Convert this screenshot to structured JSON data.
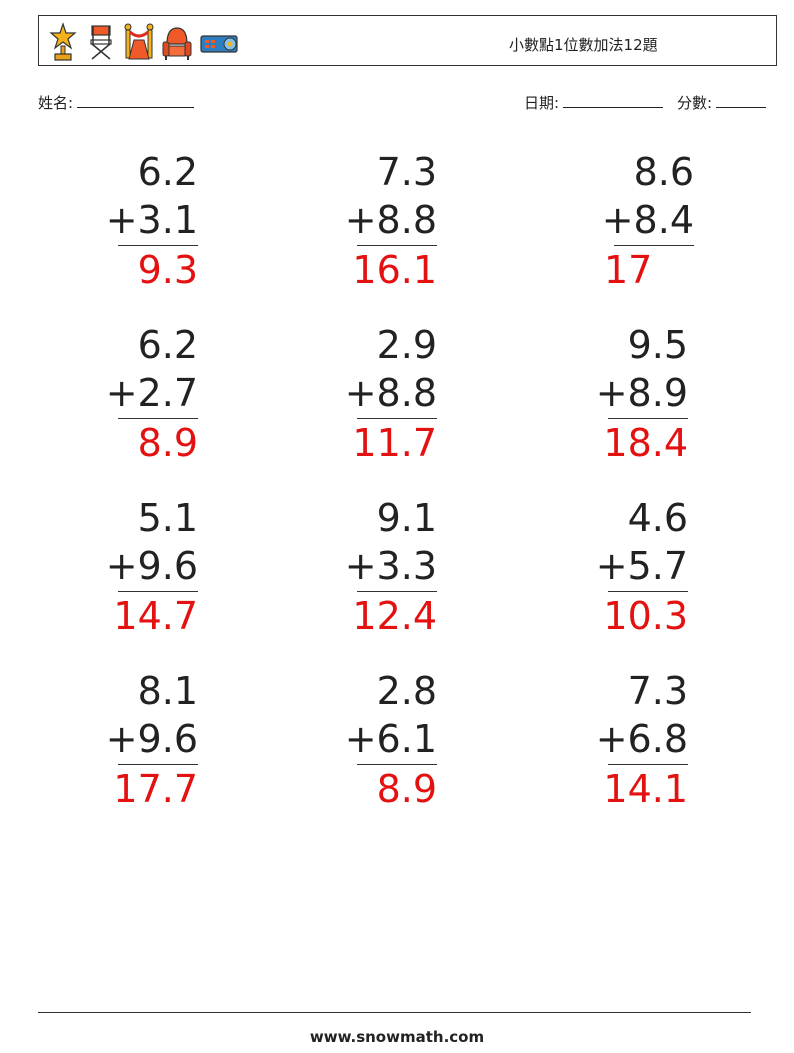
{
  "header": {
    "title": "小數點1位數加法12題",
    "icons": [
      "trophy-icon",
      "director-chair-icon",
      "red-carpet-stanchion-icon",
      "cinema-seat-icon",
      "projector-icon"
    ]
  },
  "student": {
    "name_label": "姓名:",
    "date_label": "日期:",
    "score_label": "分數:"
  },
  "problems": [
    {
      "a": "6.2",
      "b": "+3.1",
      "answer": "9.3"
    },
    {
      "a": "7.3",
      "b": "+8.8",
      "answer": "16.1"
    },
    {
      "a": "8.6",
      "b": "+8.4",
      "answer": "17"
    },
    {
      "a": "6.2",
      "b": "+2.7",
      "answer": "8.9"
    },
    {
      "a": "2.9",
      "b": "+8.8",
      "answer": "11.7"
    },
    {
      "a": "9.5",
      "b": "+8.9",
      "answer": "18.4"
    },
    {
      "a": "5.1",
      "b": "+9.6",
      "answer": "14.7"
    },
    {
      "a": "9.1",
      "b": "+3.3",
      "answer": "12.4"
    },
    {
      "a": "4.6",
      "b": "+5.7",
      "answer": "10.3"
    },
    {
      "a": "8.1",
      "b": "+9.6",
      "answer": "17.7"
    },
    {
      "a": "2.8",
      "b": "+6.1",
      "answer": "8.9"
    },
    {
      "a": "7.3",
      "b": "+6.8",
      "answer": "14.1"
    }
  ],
  "colors": {
    "answer": "#e41111",
    "text": "#222222"
  },
  "footer": {
    "site": "www.snowmath.com"
  }
}
